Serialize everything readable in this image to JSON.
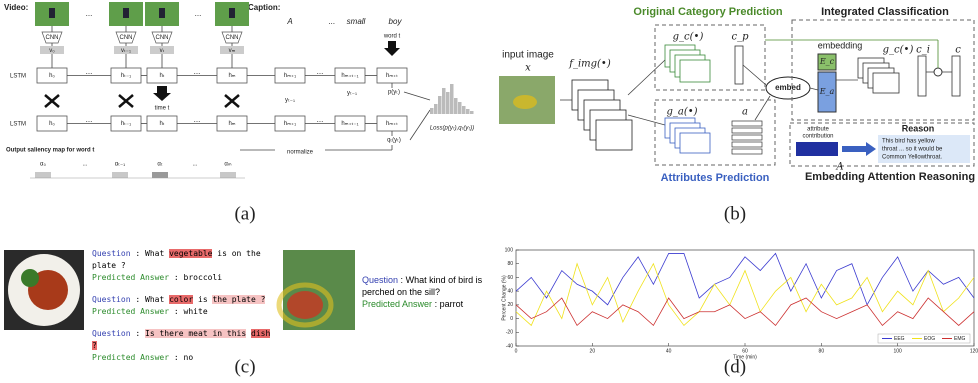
{
  "panel_a": {
    "video_label": "Video:",
    "caption_label": "Caption:",
    "ellipsis": "...",
    "caption_words": [
      "A",
      "...",
      "small",
      "boy"
    ],
    "cnn": "CNN",
    "lstm": "LSTM",
    "v": [
      "v₀",
      "vₜ₋₁",
      "vₜ",
      "vₘ"
    ],
    "h_top": [
      "h₀",
      "hₜ₋₁",
      "hₜ",
      "hₘ",
      "hₘ₊₁",
      "hₘ₊ₜ₋₁",
      "hₘ₊ₜ"
    ],
    "h_bottom": [
      "h₀",
      "hₜ₋₁",
      "hₜ",
      "hₘ",
      "hₘ₊₁",
      "hₘ₊ₜ₋₁",
      "hₘ₊ₜ"
    ],
    "time": "time t",
    "word": "word t",
    "y_prev": "yₜ₋₁",
    "y_prev_bottom": "yₜ₋₁",
    "p": "p(yₜ)",
    "q": "qₜ(yₜ)",
    "loss": "Loss(p(yₜ),qₜ(yₜ))",
    "normalize": "normalize",
    "saliency_title": "Output saliency map for word t",
    "alpha": [
      "α₀",
      "...",
      "αₜ₋₁",
      "αₜ",
      "...",
      "αₘ"
    ]
  },
  "panel_b": {
    "input_label": "input image",
    "x": "x",
    "f_img": "f_img(•)",
    "ocp_title": "Original Category Prediction",
    "g_c": "g_c(•)",
    "c_p": "c_p",
    "embed": "embed",
    "ic_title": "Integrated Classification",
    "embedding": "embedding",
    "E_c": "E_c",
    "E_a": "E_a",
    "g_c2": "g_c(•)",
    "c_i": "c_i",
    "c": "c",
    "g_a": "g_a(•)",
    "a": "a",
    "ap_title": "Attributes Prediction",
    "attr_contrib": [
      "attribute",
      "contribution"
    ],
    "A": "A",
    "reason": "Reason",
    "reason_text": [
      "This bird has yellow",
      "throat ... so it would be",
      "Common Yellowthroat."
    ],
    "ear_title": "Embedding Attention Reasoning"
  },
  "panel_c": {
    "question_label": "Question",
    "answer_label": "Predicted Answer",
    "sep": ":",
    "qa": [
      {
        "question": [
          {
            "text": "What "
          },
          {
            "text": "vegetable",
            "hl": "strong"
          },
          {
            "text": " is on the plate ?"
          }
        ],
        "answer": "broccoli"
      },
      {
        "question": [
          {
            "text": "What "
          },
          {
            "text": "color",
            "hl": "strong"
          },
          {
            "text": " is "
          },
          {
            "text": "the plate ?",
            "hl": "light"
          }
        ],
        "answer": "white"
      },
      {
        "question": [
          {
            "text": "Is there meat in this",
            "hl": "light"
          },
          {
            "text": " "
          },
          {
            "text": "dish ?",
            "hl": "strong"
          }
        ],
        "answer": "no"
      }
    ],
    "bird_qa": {
      "question": "What kind of bird is perched on the sill?",
      "answer": "parrot"
    }
  },
  "chart_data": {
    "type": "line",
    "ylabel": "Percent Change (%)",
    "xlabel": "Time (min)",
    "x": [
      0,
      4,
      8,
      12,
      16,
      20,
      24,
      28,
      32,
      36,
      40,
      44,
      48,
      52,
      56,
      60,
      64,
      68,
      72,
      76,
      80,
      84,
      88,
      92,
      96,
      100,
      104,
      108,
      112,
      116,
      120
    ],
    "series": [
      {
        "name": "EEG",
        "color": "#3b3bd0",
        "values": [
          40,
          60,
          30,
          70,
          50,
          40,
          20,
          60,
          90,
          50,
          95,
          95,
          30,
          50,
          60,
          90,
          70,
          95,
          40,
          80,
          30,
          70,
          80,
          20,
          60,
          90,
          40,
          70,
          50,
          60,
          30
        ]
      },
      {
        "name": "EOG",
        "color": "#f0e21c",
        "values": [
          10,
          -10,
          40,
          0,
          80,
          20,
          60,
          -5,
          40,
          80,
          20,
          -10,
          10,
          50,
          20,
          70,
          10,
          40,
          60,
          10,
          50,
          20,
          30,
          60,
          10,
          40,
          20,
          70,
          10,
          30,
          60
        ]
      },
      {
        "name": "EMG",
        "color": "#cc3030",
        "values": [
          20,
          0,
          10,
          30,
          -10,
          10,
          0,
          20,
          10,
          -10,
          30,
          0,
          10,
          10,
          20,
          0,
          10,
          -10,
          20,
          30,
          10,
          0,
          10,
          20,
          -10,
          10,
          0,
          30,
          10,
          -10,
          10
        ]
      }
    ],
    "xlim": [
      0,
      120
    ],
    "xticks": [
      0,
      20,
      40,
      60,
      80,
      100,
      120
    ],
    "ylim": [
      -40,
      100
    ],
    "yticks": [
      -40,
      -20,
      0,
      20,
      40,
      60,
      80,
      100
    ],
    "legend": "lower right"
  },
  "captions": [
    "(a)",
    "(b)",
    "(c)",
    "(d)"
  ]
}
